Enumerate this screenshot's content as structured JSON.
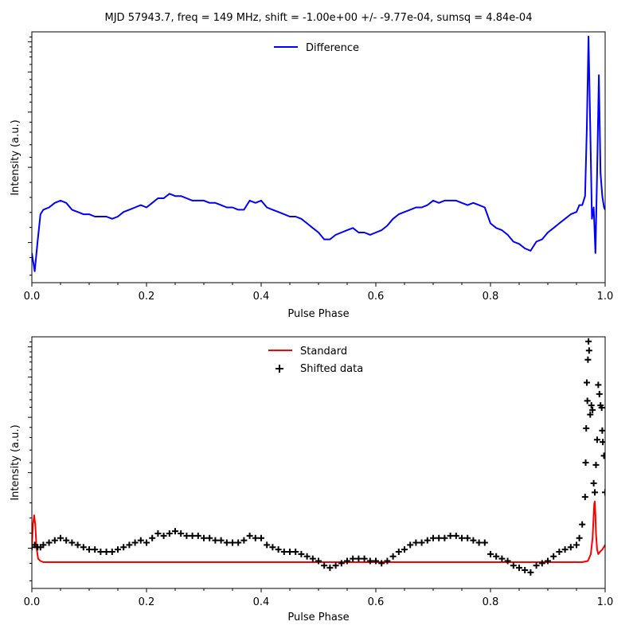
{
  "figure": {
    "title": "MJD 57943.7, freq = 149 MHz, shift = -1.00e+00 +/- -9.77e-04, sumsq = 4.84e-04"
  },
  "chart_data": [
    {
      "type": "line",
      "xlabel": "Pulse Phase",
      "ylabel": "Intensity (a.u.)",
      "xlim": [
        0,
        1
      ],
      "ylim": [
        -0.08,
        1.02
      ],
      "x_ticks": [
        "0.0",
        "0.2",
        "0.4",
        "0.6",
        "0.8",
        "1.0"
      ],
      "legend_position": "top-center",
      "colors": {
        "Difference": "#0000ff"
      },
      "series": [
        {
          "name": "Difference",
          "style": "line",
          "x": [
            0.0,
            0.005,
            0.01,
            0.015,
            0.02,
            0.03,
            0.04,
            0.05,
            0.06,
            0.07,
            0.08,
            0.09,
            0.1,
            0.11,
            0.12,
            0.13,
            0.14,
            0.15,
            0.16,
            0.17,
            0.18,
            0.19,
            0.2,
            0.21,
            0.22,
            0.23,
            0.24,
            0.25,
            0.26,
            0.27,
            0.28,
            0.29,
            0.3,
            0.31,
            0.32,
            0.33,
            0.34,
            0.35,
            0.36,
            0.37,
            0.38,
            0.39,
            0.4,
            0.41,
            0.42,
            0.43,
            0.44,
            0.45,
            0.46,
            0.47,
            0.48,
            0.49,
            0.5,
            0.51,
            0.52,
            0.53,
            0.54,
            0.55,
            0.56,
            0.57,
            0.58,
            0.59,
            0.6,
            0.61,
            0.62,
            0.63,
            0.64,
            0.65,
            0.66,
            0.67,
            0.68,
            0.69,
            0.7,
            0.71,
            0.72,
            0.73,
            0.74,
            0.75,
            0.76,
            0.77,
            0.78,
            0.79,
            0.8,
            0.81,
            0.82,
            0.83,
            0.84,
            0.85,
            0.86,
            0.87,
            0.88,
            0.89,
            0.9,
            0.91,
            0.92,
            0.93,
            0.94,
            0.95,
            0.955,
            0.96,
            0.965,
            0.968,
            0.971,
            0.974,
            0.977,
            0.98,
            0.983,
            0.986,
            0.989,
            0.992,
            0.995,
            0.998,
            1.0
          ],
          "y": [
            0.05,
            -0.03,
            0.1,
            0.22,
            0.24,
            0.25,
            0.27,
            0.28,
            0.27,
            0.24,
            0.23,
            0.22,
            0.22,
            0.21,
            0.21,
            0.21,
            0.2,
            0.21,
            0.23,
            0.24,
            0.25,
            0.26,
            0.25,
            0.27,
            0.29,
            0.29,
            0.31,
            0.3,
            0.3,
            0.29,
            0.28,
            0.28,
            0.28,
            0.27,
            0.27,
            0.26,
            0.25,
            0.25,
            0.24,
            0.24,
            0.28,
            0.27,
            0.28,
            0.25,
            0.24,
            0.23,
            0.22,
            0.21,
            0.21,
            0.2,
            0.18,
            0.16,
            0.14,
            0.11,
            0.11,
            0.13,
            0.14,
            0.15,
            0.16,
            0.14,
            0.14,
            0.13,
            0.14,
            0.15,
            0.17,
            0.2,
            0.22,
            0.23,
            0.24,
            0.25,
            0.25,
            0.26,
            0.28,
            0.27,
            0.28,
            0.28,
            0.28,
            0.27,
            0.26,
            0.27,
            0.26,
            0.25,
            0.18,
            0.16,
            0.15,
            0.13,
            0.1,
            0.09,
            0.07,
            0.06,
            0.1,
            0.11,
            0.14,
            0.16,
            0.18,
            0.2,
            0.22,
            0.23,
            0.26,
            0.26,
            0.3,
            0.6,
            1.0,
            0.6,
            0.2,
            0.25,
            0.05,
            0.4,
            0.83,
            0.4,
            0.3,
            0.25,
            0.24
          ]
        }
      ]
    },
    {
      "type": "scatter",
      "xlabel": "Pulse Phase",
      "ylabel": "Intensity (a.u.)",
      "xlim": [
        0,
        1
      ],
      "ylim": [
        -0.1,
        1.0
      ],
      "x_ticks": [
        "0.0",
        "0.2",
        "0.4",
        "0.6",
        "0.8",
        "1.0"
      ],
      "legend_position": "top-center",
      "colors": {
        "Standard": "#ff0000",
        "Shifted data": "#000000"
      },
      "series": [
        {
          "name": "Standard",
          "style": "line",
          "x": [
            0.0,
            0.002,
            0.004,
            0.006,
            0.008,
            0.011,
            0.015,
            0.02,
            0.05,
            0.1,
            0.3,
            0.5,
            0.7,
            0.9,
            0.96,
            0.97,
            0.975,
            0.978,
            0.98,
            0.981,
            0.982,
            0.983,
            0.984,
            0.986,
            0.988,
            0.991,
            0.995,
            1.0
          ],
          "y": [
            0.08,
            0.18,
            0.22,
            0.18,
            0.08,
            0.03,
            0.02,
            0.015,
            0.015,
            0.015,
            0.015,
            0.015,
            0.015,
            0.015,
            0.015,
            0.02,
            0.05,
            0.12,
            0.22,
            0.27,
            0.28,
            0.22,
            0.14,
            0.07,
            0.05,
            0.06,
            0.07,
            0.09
          ]
        },
        {
          "name": "Shifted data",
          "style": "markers",
          "x": [
            0.0,
            0.005,
            0.01,
            0.015,
            0.02,
            0.03,
            0.04,
            0.05,
            0.06,
            0.07,
            0.08,
            0.09,
            0.1,
            0.11,
            0.12,
            0.13,
            0.14,
            0.15,
            0.16,
            0.17,
            0.18,
            0.19,
            0.2,
            0.21,
            0.22,
            0.23,
            0.24,
            0.25,
            0.26,
            0.27,
            0.28,
            0.29,
            0.3,
            0.31,
            0.32,
            0.33,
            0.34,
            0.35,
            0.36,
            0.37,
            0.38,
            0.39,
            0.4,
            0.41,
            0.42,
            0.43,
            0.44,
            0.45,
            0.46,
            0.47,
            0.48,
            0.49,
            0.5,
            0.51,
            0.52,
            0.53,
            0.54,
            0.55,
            0.56,
            0.57,
            0.58,
            0.59,
            0.6,
            0.61,
            0.62,
            0.63,
            0.64,
            0.65,
            0.66,
            0.67,
            0.68,
            0.69,
            0.7,
            0.71,
            0.72,
            0.73,
            0.74,
            0.75,
            0.76,
            0.77,
            0.78,
            0.79,
            0.8,
            0.81,
            0.82,
            0.83,
            0.84,
            0.85,
            0.86,
            0.87,
            0.88,
            0.89,
            0.9,
            0.91,
            0.92,
            0.93,
            0.94,
            0.95,
            0.955,
            0.96,
            0.965,
            0.966,
            0.967,
            0.968,
            0.969,
            0.97,
            0.971,
            0.972,
            0.974,
            0.976,
            0.978,
            0.98,
            0.982,
            0.984,
            0.986,
            0.988,
            0.99,
            0.992,
            0.994,
            0.995,
            0.996,
            0.998,
            1.0
          ],
          "y": [
            0.08,
            0.09,
            0.08,
            0.08,
            0.09,
            0.1,
            0.11,
            0.12,
            0.11,
            0.1,
            0.09,
            0.08,
            0.07,
            0.07,
            0.06,
            0.06,
            0.06,
            0.07,
            0.08,
            0.09,
            0.1,
            0.11,
            0.1,
            0.12,
            0.14,
            0.13,
            0.14,
            0.15,
            0.14,
            0.13,
            0.13,
            0.13,
            0.12,
            0.12,
            0.11,
            0.11,
            0.1,
            0.1,
            0.1,
            0.11,
            0.13,
            0.12,
            0.12,
            0.09,
            0.08,
            0.07,
            0.06,
            0.06,
            0.06,
            0.05,
            0.04,
            0.03,
            0.02,
            0.0,
            -0.01,
            0.0,
            0.01,
            0.02,
            0.03,
            0.03,
            0.03,
            0.02,
            0.02,
            0.01,
            0.02,
            0.04,
            0.06,
            0.07,
            0.09,
            0.1,
            0.1,
            0.11,
            0.12,
            0.12,
            0.12,
            0.13,
            0.13,
            0.12,
            0.12,
            0.11,
            0.1,
            0.1,
            0.05,
            0.04,
            0.03,
            0.02,
            0.0,
            -0.01,
            -0.02,
            -0.03,
            0.0,
            0.01,
            0.02,
            0.04,
            0.06,
            0.07,
            0.08,
            0.09,
            0.12,
            0.18,
            0.3,
            0.45,
            0.6,
            0.8,
            0.72,
            0.9,
            0.98,
            0.94,
            0.66,
            0.7,
            0.68,
            0.36,
            0.32,
            0.44,
            0.55,
            0.79,
            0.75,
            0.7,
            0.69,
            0.59,
            0.54,
            0.48,
            0.32
          ]
        }
      ]
    }
  ]
}
